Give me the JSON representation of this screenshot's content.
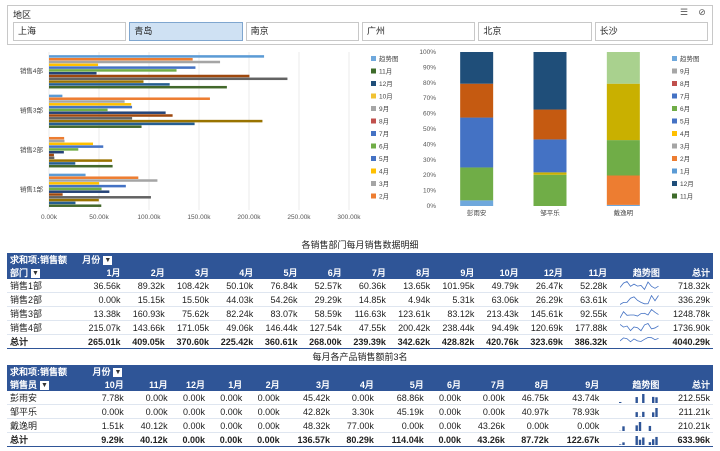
{
  "slicer": {
    "title": "地区",
    "items": [
      "上海",
      "青岛",
      "南京",
      "广州",
      "北京",
      "长沙"
    ],
    "selected": 1
  },
  "colors": {
    "accent": "#2f5597",
    "selected_bg": "#cfe1f3",
    "months": {
      "趋势图": "#6fa8dc",
      "11月": "#3d6b2a",
      "12月": "#1f4e79",
      "10月": "#f1c232",
      "9月": "#a6a6a6",
      "8月": "#c0504d",
      "7月": "#4472c4",
      "6月": "#70ad47",
      "5月": "#4472c4",
      "4月": "#ffc000",
      "3月": "#a5a5a5",
      "2月": "#ed7d31",
      "1月": "#5b9bd5"
    }
  },
  "chart_data": [
    {
      "type": "bar",
      "orientation": "horizontal",
      "categories": [
        "销售1部",
        "销售2部",
        "销售3部",
        "销售4部"
      ],
      "xlim": [
        0,
        300000
      ],
      "xticks": [
        "0.00k",
        "50.00k",
        "100.00k",
        "150.00k",
        "200.00k",
        "250.00k",
        "300.00k"
      ],
      "legend": [
        "趋势图",
        "11月",
        "12月",
        "10月",
        "9月",
        "8月",
        "7月",
        "6月",
        "5月",
        "4月",
        "3月",
        "2月"
      ],
      "series": [
        {
          "name": "1月",
          "color": "#5b9bd5",
          "values": [
            36560,
            0,
            13380,
            215070
          ]
        },
        {
          "name": "2月",
          "color": "#ed7d31",
          "values": [
            89320,
            15150,
            160930,
            143660
          ]
        },
        {
          "name": "3月",
          "color": "#a5a5a5",
          "values": [
            108420,
            15500,
            75620,
            171050
          ]
        },
        {
          "name": "4月",
          "color": "#ffc000",
          "values": [
            50100,
            44030,
            82240,
            49060
          ]
        },
        {
          "name": "5月",
          "color": "#4472c4",
          "values": [
            76840,
            54260,
            83070,
            146440
          ]
        },
        {
          "name": "6月",
          "color": "#70ad47",
          "values": [
            52570,
            29290,
            58590,
            127540
          ]
        },
        {
          "name": "7月",
          "color": "#264478",
          "values": [
            60360,
            14850,
            116630,
            47550
          ]
        },
        {
          "name": "8月",
          "color": "#9e480e",
          "values": [
            13650,
            4940,
            123610,
            200420
          ]
        },
        {
          "name": "9月",
          "color": "#636363",
          "values": [
            101950,
            5310,
            83120,
            238440
          ]
        },
        {
          "name": "10月",
          "color": "#997300",
          "values": [
            49790,
            63060,
            213430,
            94490
          ]
        },
        {
          "name": "12月",
          "color": "#255e91",
          "values": [
            26470,
            26290,
            145610,
            120690
          ]
        },
        {
          "name": "11月",
          "color": "#43682b",
          "values": [
            52280,
            63610,
            92550,
            177880
          ]
        }
      ]
    },
    {
      "type": "bar",
      "stacked": "percent",
      "categories": [
        "彭雨安",
        "邹平乐",
        "戴逸明"
      ],
      "yticks": [
        "0%",
        "10%",
        "20%",
        "30%",
        "40%",
        "50%",
        "60%",
        "70%",
        "80%",
        "90%",
        "100%"
      ],
      "legend": [
        "趋势图",
        "9月",
        "8月",
        "7月",
        "6月",
        "5月",
        "4月",
        "3月",
        "2月",
        "1月",
        "12月",
        "11月"
      ],
      "series": [
        {
          "name": "10月",
          "color": "#6fa8dc",
          "values": [
            7.78,
            0,
            1.51
          ]
        },
        {
          "name": "11月",
          "color": "#ed7d31",
          "values": [
            0,
            0,
            40.12
          ]
        },
        {
          "name": "3月",
          "color": "#70ad47",
          "values": [
            45.42,
            42.82,
            48.32
          ]
        },
        {
          "name": "4月",
          "color": "#c9b000",
          "values": [
            0,
            3.3,
            77.0
          ]
        },
        {
          "name": "5月",
          "color": "#4472c4",
          "values": [
            68.86,
            45.19,
            0
          ]
        },
        {
          "name": "7月",
          "color": "#a9d18e",
          "values": [
            0,
            0,
            43.26
          ]
        },
        {
          "name": "8月",
          "color": "#c55a11",
          "values": [
            46.75,
            40.97,
            0
          ]
        },
        {
          "name": "9月",
          "color": "#1f4e79",
          "values": [
            43.74,
            78.93,
            0
          ]
        },
        {
          "name": "12月",
          "color": "#3d6b2a",
          "values": [
            0,
            0,
            0
          ]
        }
      ]
    }
  ],
  "table1": {
    "caption": "各销售部门每月销售数据明细",
    "corner": "求和项:销售额",
    "col_field": "月份",
    "row_field": "部门",
    "headers": [
      "1月",
      "2月",
      "3月",
      "4月",
      "5月",
      "6月",
      "7月",
      "8月",
      "9月",
      "10月",
      "12月",
      "11月",
      "趋势图",
      "总计"
    ],
    "rows": [
      {
        "label": "销售1部",
        "values": [
          "36.56k",
          "89.32k",
          "108.42k",
          "50.10k",
          "76.84k",
          "52.57k",
          "60.36k",
          "13.65k",
          "101.95k",
          "49.79k",
          "26.47k",
          "52.28k",
          "",
          "718.32k"
        ]
      },
      {
        "label": "销售2部",
        "values": [
          "0.00k",
          "15.15k",
          "15.50k",
          "44.03k",
          "54.26k",
          "29.29k",
          "14.85k",
          "4.94k",
          "5.31k",
          "63.06k",
          "26.29k",
          "63.61k",
          "",
          "336.29k"
        ]
      },
      {
        "label": "销售3部",
        "values": [
          "13.38k",
          "160.93k",
          "75.62k",
          "82.24k",
          "83.07k",
          "58.59k",
          "116.63k",
          "123.61k",
          "83.12k",
          "213.43k",
          "145.61k",
          "92.55k",
          "",
          "1248.78k"
        ]
      },
      {
        "label": "销售4部",
        "values": [
          "215.07k",
          "143.66k",
          "171.05k",
          "49.06k",
          "146.44k",
          "127.54k",
          "47.55k",
          "200.42k",
          "238.44k",
          "94.49k",
          "120.69k",
          "177.88k",
          "",
          "1736.90k"
        ]
      }
    ],
    "total": {
      "label": "总计",
      "values": [
        "265.01k",
        "409.05k",
        "370.60k",
        "225.42k",
        "360.61k",
        "268.00k",
        "239.39k",
        "342.62k",
        "428.82k",
        "420.76k",
        "323.69k",
        "386.32k",
        "",
        "4040.29k"
      ]
    }
  },
  "table2": {
    "caption": "每月各产品销售额前3名",
    "corner": "求和项:销售额",
    "col_field": "月份",
    "row_field": "销售员",
    "headers": [
      "10月",
      "11月",
      "12月",
      "1月",
      "2月",
      "3月",
      "4月",
      "5月",
      "6月",
      "7月",
      "8月",
      "9月",
      "趋势图",
      "总计"
    ],
    "rows": [
      {
        "label": "彭雨安",
        "values": [
          "7.78k",
          "0.00k",
          "0.00k",
          "0.00k",
          "0.00k",
          "45.42k",
          "0.00k",
          "68.86k",
          "0.00k",
          "0.00k",
          "46.75k",
          "43.74k",
          "",
          "212.55k"
        ]
      },
      {
        "label": "邹平乐",
        "values": [
          "0.00k",
          "0.00k",
          "0.00k",
          "0.00k",
          "0.00k",
          "42.82k",
          "3.30k",
          "45.19k",
          "0.00k",
          "0.00k",
          "40.97k",
          "78.93k",
          "",
          "211.21k"
        ]
      },
      {
        "label": "戴逸明",
        "values": [
          "1.51k",
          "40.12k",
          "0.00k",
          "0.00k",
          "0.00k",
          "48.32k",
          "77.00k",
          "0.00k",
          "0.00k",
          "43.26k",
          "0.00k",
          "0.00k",
          "",
          "210.21k"
        ]
      }
    ],
    "total": {
      "label": "总计",
      "values": [
        "9.29k",
        "40.12k",
        "0.00k",
        "0.00k",
        "0.00k",
        "136.57k",
        "80.29k",
        "114.04k",
        "0.00k",
        "43.26k",
        "87.72k",
        "122.67k",
        "",
        "633.96k"
      ]
    }
  }
}
